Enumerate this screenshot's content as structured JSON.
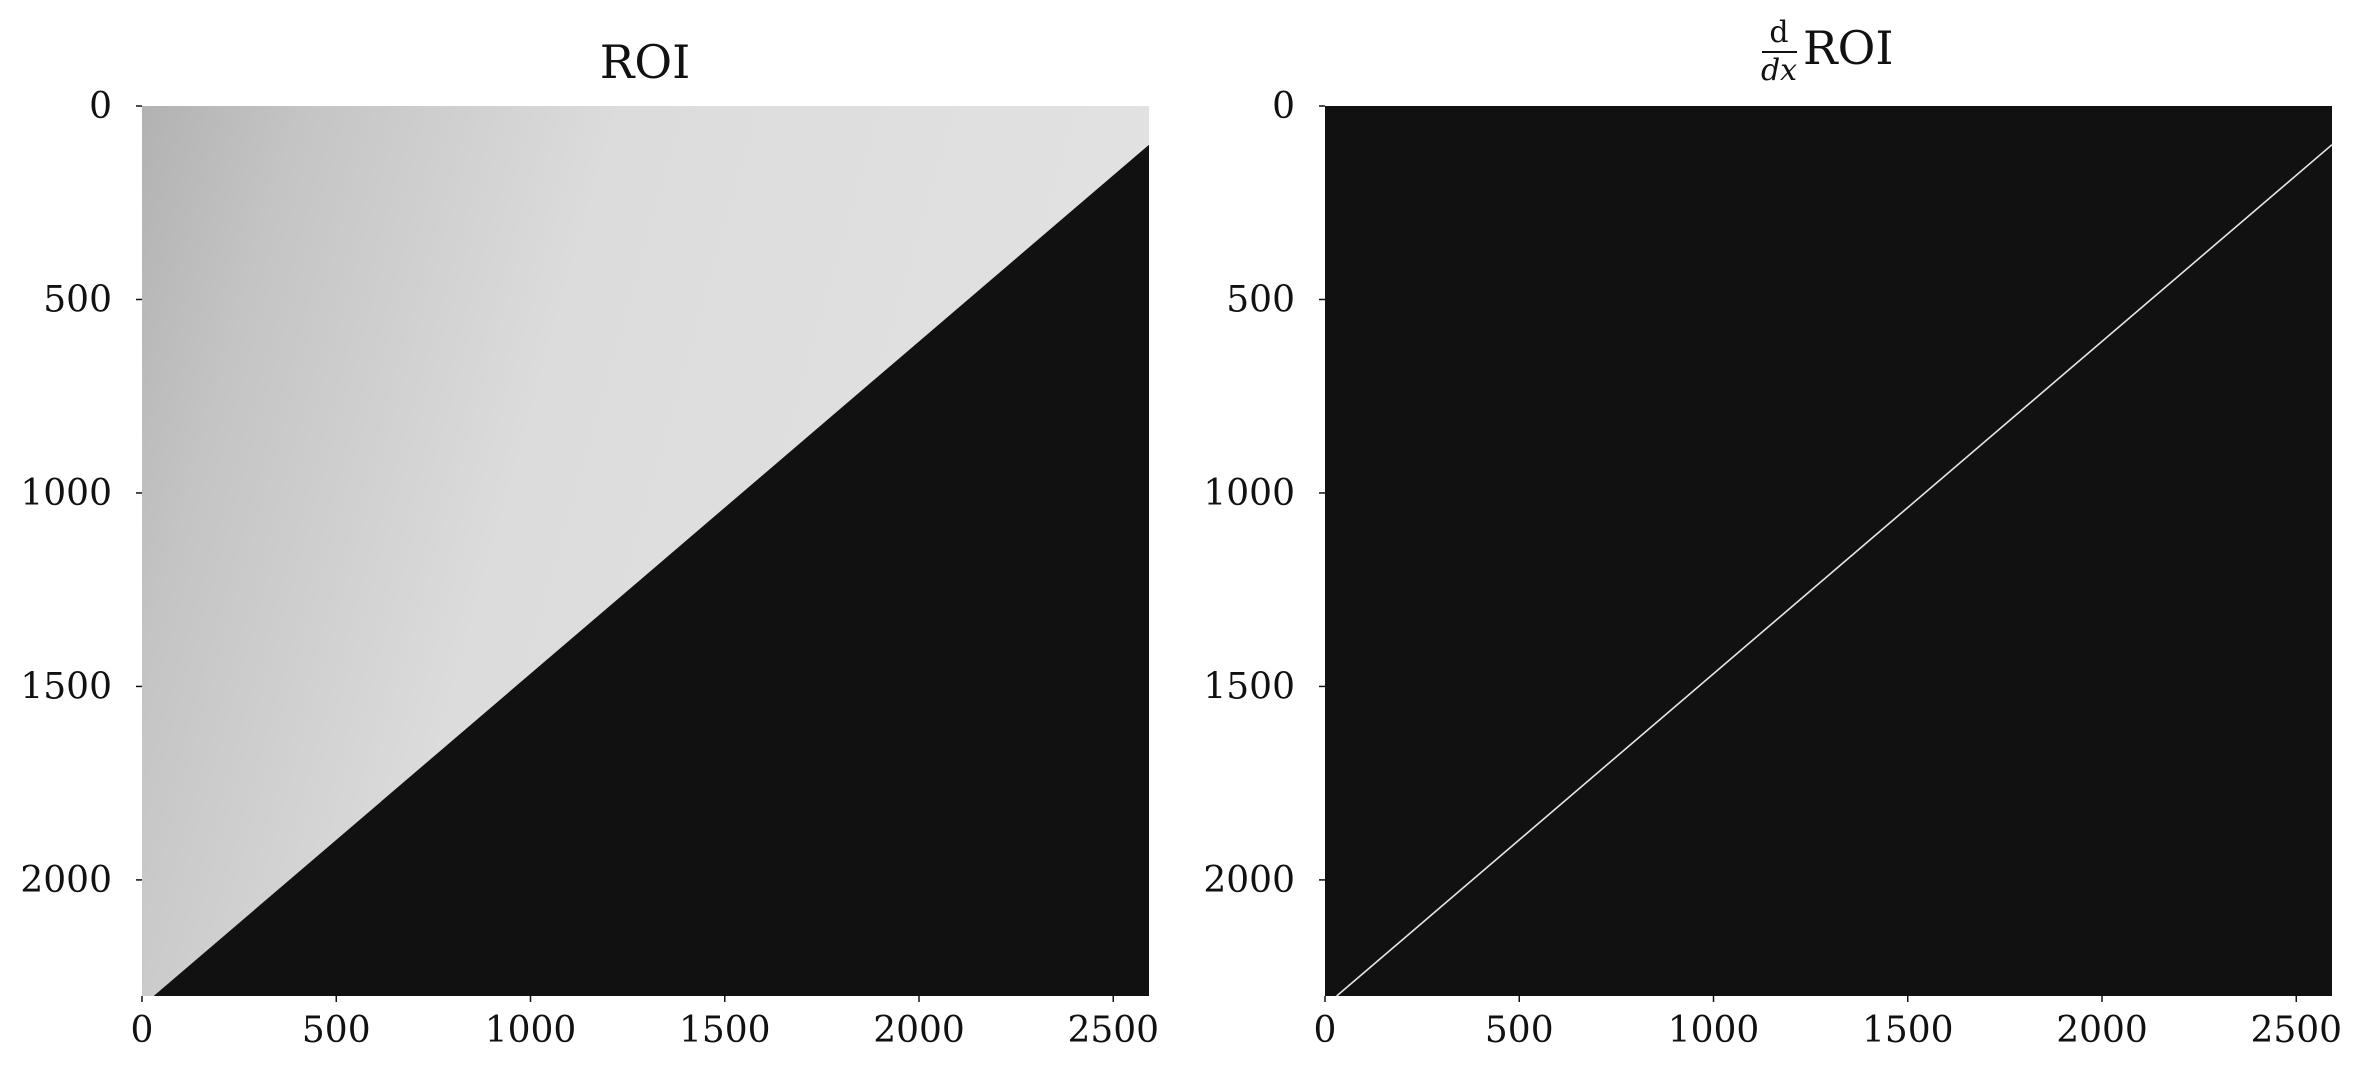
{
  "chart_data": [
    {
      "type": "heatmap",
      "title": "ROI",
      "xlabel": "",
      "ylabel": "",
      "xlim": [
        0,
        2592
      ],
      "ylim": [
        2300,
        0
      ],
      "x_ticks": [
        0,
        500,
        1000,
        1500,
        2000,
        2500
      ],
      "y_ticks": [
        0,
        500,
        1000,
        1500,
        2000
      ],
      "grid": false,
      "colormap": "gray",
      "edge_line": {
        "x": [
          30,
          2592
        ],
        "y": [
          2300,
          100
        ]
      },
      "colors": {
        "bright_region": "#d9d9d9",
        "dark_region": "#111111"
      }
    },
    {
      "type": "heatmap",
      "title_math": {
        "numerator": "d",
        "denominator": "dx",
        "suffix": "ROI"
      },
      "xlabel": "",
      "ylabel": "",
      "xlim": [
        0,
        2592
      ],
      "ylim": [
        2300,
        0
      ],
      "x_ticks": [
        0,
        500,
        1000,
        1500,
        2000,
        2500
      ],
      "y_ticks": [
        0,
        500,
        1000,
        1500,
        2000
      ],
      "grid": false,
      "colormap": "gray",
      "edge_line": {
        "x": [
          30,
          2592
        ],
        "y": [
          2300,
          100
        ]
      },
      "colors": {
        "background": "#111111",
        "edge": "#e6e6e6"
      }
    }
  ]
}
